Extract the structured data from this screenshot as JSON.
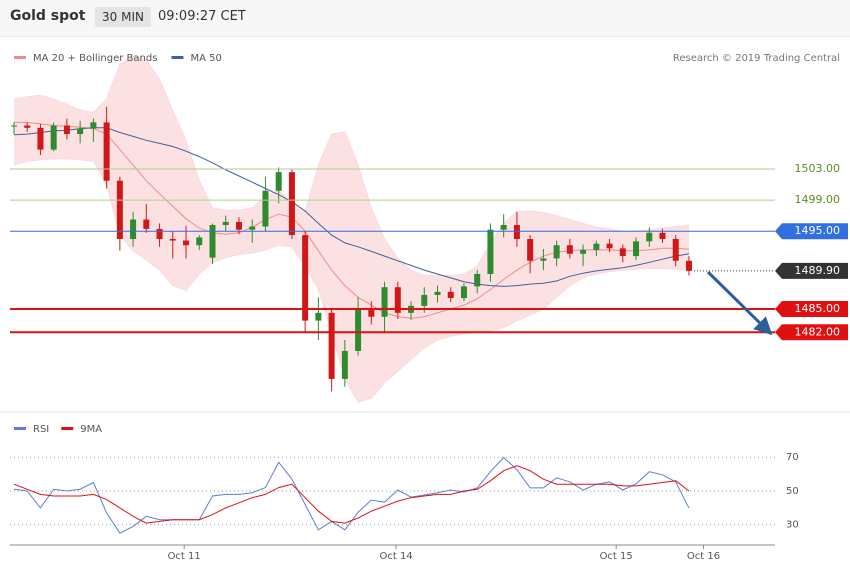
{
  "header": {
    "title": "Gold spot",
    "timeframe": "30 MIN",
    "time": "09:09:27 CET"
  },
  "chart_data": [
    {
      "type": "candlestick",
      "source": "Research © 2019 Trading Central",
      "xlim": [
        -0.3,
        57.5
      ],
      "ylim": [
        1472,
        1519.6
      ],
      "up_color": "#2e8b2e",
      "down_color": "#d01818",
      "open": [
        1508.5,
        1508.6,
        1508.3,
        1505.5,
        1508.6,
        1507.5,
        1508.2,
        1509,
        1501.5,
        1494,
        1496.5,
        1495.3,
        1494,
        1493.8,
        1493.2,
        1491.6,
        1495.8,
        1496.2,
        1495.2,
        1495.6,
        1500.2,
        1502.6,
        1494.5,
        1483.5,
        1484.5,
        1476,
        1479.6,
        1485,
        1484,
        1487.8,
        1484.5,
        1485.4,
        1486.8,
        1487.2,
        1486.4,
        1487.9,
        1489.5,
        1495.2,
        1495.8,
        1494,
        1491.2,
        1491.5,
        1493.2,
        1492.1,
        1492.6,
        1493.4,
        1492.8,
        1491.8,
        1493.7,
        1494.8,
        1494,
        1491.2
      ],
      "high": [
        1509,
        1509,
        1508.8,
        1509,
        1509.5,
        1509.2,
        1509.5,
        1511,
        1502,
        1497.5,
        1498.5,
        1496,
        1495,
        1495.7,
        1494.5,
        1496,
        1497,
        1496.8,
        1496.5,
        1502,
        1503.2,
        1503,
        1495,
        1486.5,
        1485,
        1481,
        1486.5,
        1486,
        1488.5,
        1488.5,
        1486,
        1487.8,
        1488,
        1487.8,
        1488.3,
        1490,
        1496,
        1497.2,
        1497.5,
        1494.5,
        1492.7,
        1493.8,
        1494,
        1493.3,
        1493.8,
        1494,
        1493.3,
        1494.2,
        1495.5,
        1495.3,
        1494.5,
        1491.8
      ],
      "low": [
        1507.5,
        1507.8,
        1504.8,
        1505.3,
        1506.8,
        1506.3,
        1506.5,
        1500.5,
        1492.5,
        1493,
        1494.8,
        1493,
        1491.5,
        1491.5,
        1492.6,
        1490.8,
        1495,
        1494.6,
        1493.5,
        1495,
        1498.6,
        1494,
        1482,
        1481,
        1474.4,
        1475,
        1479,
        1483,
        1482,
        1483.7,
        1483.6,
        1484.5,
        1485.8,
        1485.9,
        1486,
        1487,
        1488.5,
        1494.2,
        1493,
        1489.6,
        1490,
        1490.5,
        1491.5,
        1490.5,
        1491.8,
        1492.3,
        1491,
        1491.3,
        1493,
        1493.5,
        1490.5,
        1489.3
      ],
      "close": [
        1508.6,
        1508.3,
        1505.5,
        1508.6,
        1507.5,
        1508.2,
        1509,
        1501.5,
        1494,
        1496.5,
        1495.3,
        1494,
        1493.8,
        1493.2,
        1494.2,
        1495.8,
        1496.2,
        1495.2,
        1495.6,
        1500.2,
        1502.6,
        1494.5,
        1483.5,
        1484.5,
        1476,
        1479.6,
        1485,
        1484,
        1487.8,
        1484.5,
        1485.4,
        1486.8,
        1487.2,
        1486.4,
        1487.9,
        1489.5,
        1495.2,
        1495.8,
        1494,
        1491.2,
        1491.5,
        1493.2,
        1492.1,
        1492.6,
        1493.4,
        1492.8,
        1491.8,
        1493.7,
        1494.8,
        1494,
        1491.2,
        1489.9
      ],
      "series": [
        {
          "name": "MA 20 + Bollinger Bands",
          "color": "#f08a8a",
          "band_color": "#fbd9dc",
          "values": [
            1509,
            1509,
            1508.8,
            1508.6,
            1508.5,
            1508.4,
            1508.2,
            1507.5,
            1505.5,
            1503.5,
            1501.5,
            1499.8,
            1498.2,
            1496.6,
            1495.4,
            1494.8,
            1494.6,
            1494.8,
            1495.5,
            1496.5,
            1497.2,
            1496.8,
            1495,
            1492.5,
            1490,
            1488,
            1486.5,
            1485.5,
            1484.5,
            1484,
            1483.8,
            1484,
            1484.5,
            1485,
            1485.5,
            1486.3,
            1487.5,
            1488.8,
            1490,
            1491,
            1491.8,
            1492.3,
            1492.5,
            1492.6,
            1492.6,
            1492.6,
            1492.5,
            1492.5,
            1492.6,
            1492.8,
            1492.8,
            1492.7
          ],
          "upper": [
            1512,
            1512.3,
            1512.5,
            1512,
            1511.3,
            1510.6,
            1510.3,
            1512,
            1516.5,
            1517.5,
            1517,
            1514.5,
            1510.5,
            1506.7,
            1501.5,
            1498,
            1497.7,
            1497.7,
            1498,
            1499.5,
            1500.3,
            1498.5,
            1497.5,
            1503.5,
            1507.5,
            1507.8,
            1503.5,
            1498,
            1494,
            1491.5,
            1490,
            1489.3,
            1489.3,
            1489.3,
            1489.5,
            1490.5,
            1493.5,
            1496,
            1497.5,
            1497.6,
            1497.4,
            1497,
            1496.5,
            1496,
            1495.5,
            1495.3,
            1495,
            1495,
            1495.2,
            1495.4,
            1495.6,
            1495.8
          ],
          "lower": [
            1503.5,
            1504,
            1504.2,
            1504.3,
            1504.3,
            1504.2,
            1504,
            1501,
            1494.5,
            1492.5,
            1491.3,
            1490,
            1488,
            1487.4,
            1489.5,
            1491,
            1491.6,
            1492,
            1492.2,
            1492.6,
            1493.2,
            1493,
            1490.5,
            1487.5,
            1482,
            1476,
            1473,
            1473.5,
            1475.5,
            1477,
            1478.5,
            1480,
            1481,
            1481.5,
            1481.8,
            1482,
            1482.2,
            1482.6,
            1483.5,
            1484.2,
            1485,
            1486.5,
            1488,
            1489,
            1489.5,
            1489.8,
            1490,
            1490.1,
            1490.2,
            1490.2,
            1490.1,
            1490
          ]
        },
        {
          "name": "MA 50",
          "color": "#3f5f9f",
          "values": [
            1507.4,
            1507.5,
            1507.7,
            1507.9,
            1508,
            1508.2,
            1508.3,
            1508.3,
            1507.7,
            1507.2,
            1506.7,
            1506.3,
            1505.9,
            1505.3,
            1504.6,
            1503.8,
            1502.9,
            1502.1,
            1501.3,
            1500.5,
            1499.7,
            1498.8,
            1497.6,
            1496,
            1494.5,
            1493.5,
            1493,
            1492.4,
            1491.8,
            1491.2,
            1490.6,
            1490,
            1489.5,
            1489,
            1488.5,
            1488.2,
            1488,
            1487.9,
            1488,
            1488.2,
            1488.3,
            1488.6,
            1489.2,
            1489.6,
            1489.9,
            1490.1,
            1490.3,
            1490.6,
            1491,
            1491.4,
            1491.8,
            1492.1
          ]
        }
      ],
      "levels": [
        {
          "value": 1503,
          "label": "1503.00",
          "color": "#a9d18e",
          "text_color": "#5f8a1f",
          "flag": false,
          "line_width": 1
        },
        {
          "value": 1499,
          "label": "1499.00",
          "color": "#a9d18e",
          "text_color": "#5f8a1f",
          "flag": false,
          "line_width": 1
        },
        {
          "value": 1495,
          "label": "1495.00",
          "color": "#2f6fe0",
          "text_color": "#ffffff",
          "flag": true,
          "line_width": 1
        },
        {
          "value": 1485,
          "label": "1485.00",
          "color": "#e01010",
          "text_color": "#ffffff",
          "flag": true,
          "line_width": 2
        },
        {
          "value": 1482,
          "label": "1482.00",
          "color": "#e01010",
          "text_color": "#ffffff",
          "flag": true,
          "line_width": 2
        }
      ],
      "last_price": {
        "value": 1489.9,
        "label": "1489.90",
        "color": "#333333"
      }
    },
    {
      "type": "line",
      "xlim": [
        -0.3,
        57.5
      ],
      "ylim": [
        18,
        95
      ],
      "yticks": [
        70,
        50,
        30
      ],
      "grid": true,
      "xticks": [
        {
          "value": 12.86,
          "label": "Oct 11"
        },
        {
          "value": 28.87,
          "label": "Oct 14"
        },
        {
          "value": 45.5,
          "label": "Oct 15"
        },
        {
          "value": 52.1,
          "label": "Oct 16"
        }
      ],
      "series": [
        {
          "name": "RSI",
          "color": "#5b7fd6",
          "values": [
            51,
            50,
            40,
            51,
            50,
            51,
            55,
            37,
            25,
            29,
            35,
            33,
            33,
            33,
            33,
            47,
            48,
            48,
            49,
            52,
            67,
            57,
            42,
            27,
            32,
            27,
            37.4,
            44.6,
            43.4,
            50.6,
            46.4,
            47.6,
            49,
            50.6,
            49.4,
            51.8,
            61.4,
            69.8,
            62.6,
            51.8,
            51.8,
            57.8,
            55.4,
            50.6,
            54,
            55.4,
            50.6,
            54.2,
            61.4,
            59.6,
            55.4,
            39.8
          ]
        },
        {
          "name": "9MA",
          "color": "#e01010",
          "values": [
            54,
            51,
            48,
            47,
            47,
            47,
            48,
            45,
            40,
            35,
            31,
            32,
            33,
            33,
            33,
            36,
            40,
            43,
            46,
            48,
            52,
            54,
            46,
            38,
            32,
            31,
            34,
            38,
            41,
            44,
            46,
            47,
            48,
            48,
            50,
            51,
            56,
            62,
            65,
            62,
            57,
            54,
            54,
            54,
            54,
            54,
            53,
            53,
            54,
            55,
            56,
            50
          ]
        }
      ]
    }
  ]
}
